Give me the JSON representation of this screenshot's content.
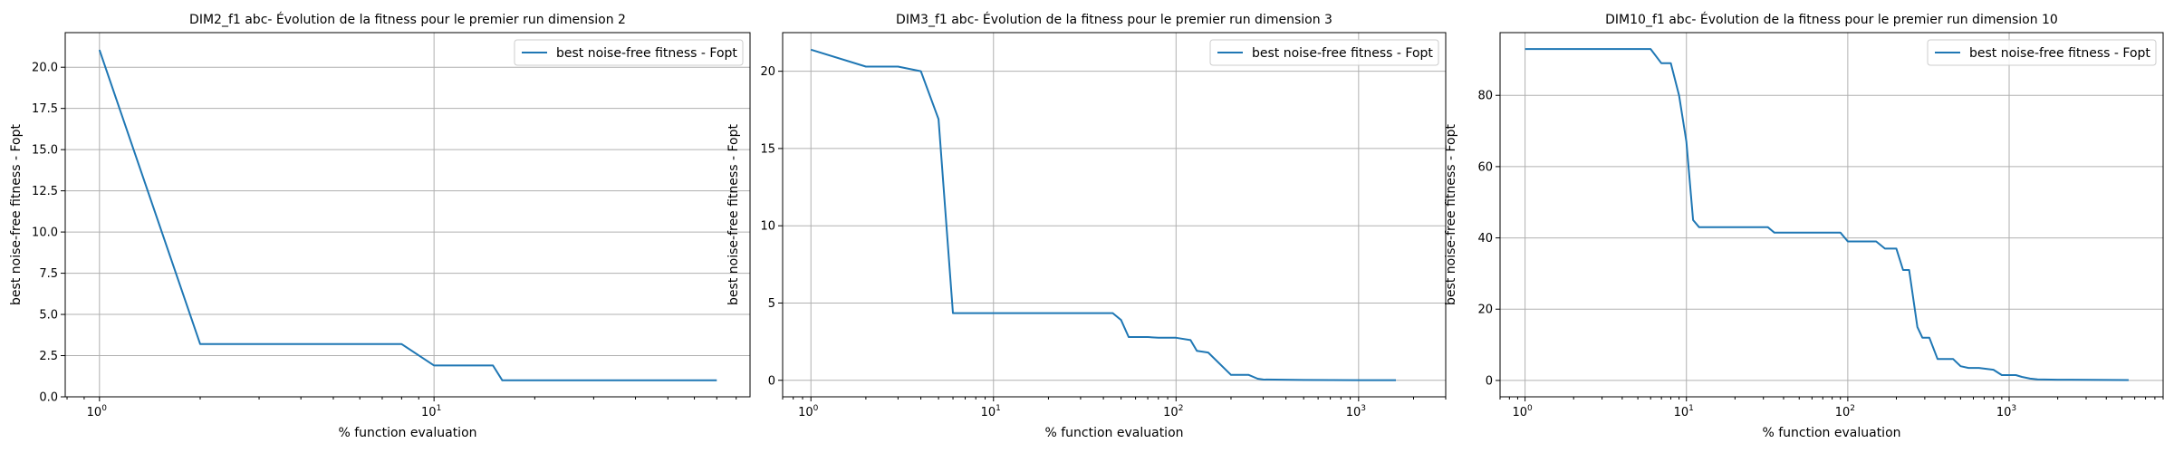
{
  "chart_data": [
    {
      "type": "line",
      "title": "DIM2_f1 abc- Évolution de la fitness pour le premier run dimension 2",
      "xlabel": "% function evaluation",
      "ylabel": "best noise-free fitness - Fopt",
      "xscale": "log",
      "xlim": [
        0.79,
        88
      ],
      "ylim": [
        0,
        22.1
      ],
      "xticks": [
        {
          "value": 1,
          "base": "10",
          "exp": "0"
        },
        {
          "value": 10,
          "base": "10",
          "exp": "1"
        }
      ],
      "yticks": [
        {
          "value": 0,
          "label": "0.0"
        },
        {
          "value": 2.5,
          "label": "2.5"
        },
        {
          "value": 5,
          "label": "5.0"
        },
        {
          "value": 7.5,
          "label": "7.5"
        },
        {
          "value": 10,
          "label": "10.0"
        },
        {
          "value": 12.5,
          "label": "12.5"
        },
        {
          "value": 15,
          "label": "15.0"
        },
        {
          "value": 17.5,
          "label": "17.5"
        },
        {
          "value": 20,
          "label": "20.0"
        }
      ],
      "grid": true,
      "legend_position": "top-right",
      "series": [
        {
          "name": "best noise-free fitness - Fopt",
          "color": "#1f77b4",
          "x": [
            1,
            2,
            8,
            10,
            15,
            16,
            70
          ],
          "y": [
            21.05,
            3.2,
            3.2,
            1.9,
            1.9,
            1.0,
            1.0
          ]
        }
      ]
    },
    {
      "type": "line",
      "title": "DIM3_f1 abc- Évolution de la fitness pour le premier run dimension 3",
      "xlabel": "% function evaluation",
      "ylabel": "best noise-free fitness - Fopt",
      "xscale": "log",
      "xlim": [
        0.7,
        3000
      ],
      "ylim": [
        -1.07,
        22.5
      ],
      "xticks": [
        {
          "value": 1,
          "base": "10",
          "exp": "0"
        },
        {
          "value": 10,
          "base": "10",
          "exp": "1"
        },
        {
          "value": 100,
          "base": "10",
          "exp": "2"
        },
        {
          "value": 1000,
          "base": "10",
          "exp": "3"
        }
      ],
      "yticks": [
        {
          "value": 0,
          "label": "0"
        },
        {
          "value": 5,
          "label": "5"
        },
        {
          "value": 10,
          "label": "10"
        },
        {
          "value": 15,
          "label": "15"
        },
        {
          "value": 20,
          "label": "20"
        }
      ],
      "grid": true,
      "legend_position": "top-right",
      "series": [
        {
          "name": "best noise-free fitness - Fopt",
          "color": "#1f77b4",
          "x": [
            1,
            2,
            3,
            4,
            5,
            6,
            45,
            50,
            55,
            70,
            80,
            100,
            120,
            130,
            150,
            200,
            250,
            280,
            300,
            500,
            1000,
            1600
          ],
          "y": [
            21.4,
            20.3,
            20.3,
            20.0,
            16.9,
            4.35,
            4.35,
            3.9,
            2.8,
            2.8,
            2.75,
            2.75,
            2.6,
            1.9,
            1.8,
            0.35,
            0.35,
            0.1,
            0.05,
            0.02,
            0.01,
            0.01
          ]
        }
      ]
    },
    {
      "type": "line",
      "title": "DIM10_f1 abc- Évolution de la fitness pour le premier run dimension 10",
      "xlabel": "% function evaluation",
      "ylabel": "best noise-free fitness - Fopt",
      "xscale": "log",
      "xlim": [
        0.7,
        9000
      ],
      "ylim": [
        -4.6,
        97.6
      ],
      "xticks": [
        {
          "value": 1,
          "base": "10",
          "exp": "0"
        },
        {
          "value": 10,
          "base": "10",
          "exp": "1"
        },
        {
          "value": 100,
          "base": "10",
          "exp": "2"
        },
        {
          "value": 1000,
          "base": "10",
          "exp": "3"
        }
      ],
      "yticks": [
        {
          "value": 0,
          "label": "0"
        },
        {
          "value": 20,
          "label": "20"
        },
        {
          "value": 40,
          "label": "40"
        },
        {
          "value": 60,
          "label": "60"
        },
        {
          "value": 80,
          "label": "80"
        }
      ],
      "grid": true,
      "legend_position": "top-right",
      "series": [
        {
          "name": "best noise-free fitness - Fopt",
          "color": "#1f77b4",
          "x": [
            1,
            6,
            7,
            8,
            9,
            10,
            11,
            12,
            32,
            35,
            90,
            100,
            150,
            170,
            200,
            220,
            240,
            270,
            290,
            320,
            360,
            400,
            450,
            500,
            560,
            650,
            800,
            900,
            1100,
            1200,
            1350,
            1500,
            2000,
            5500
          ],
          "y": [
            93,
            93,
            89,
            89,
            80,
            67,
            45,
            43,
            43,
            41.5,
            41.5,
            39,
            39,
            37,
            37,
            31,
            31,
            15,
            12,
            12,
            6,
            6,
            6,
            4,
            3.5,
            3.5,
            3,
            1.5,
            1.5,
            1,
            0.5,
            0.3,
            0.2,
            0.1
          ]
        }
      ]
    }
  ]
}
